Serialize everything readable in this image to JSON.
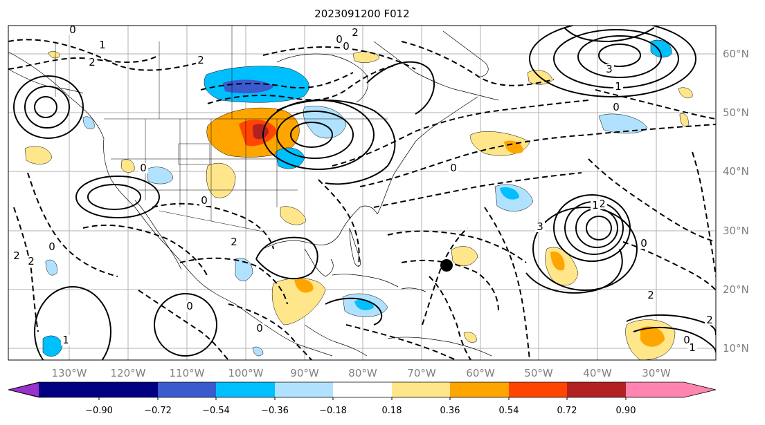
{
  "title": "2023091200 F012",
  "map": {
    "lon_labels": [
      "130°W",
      "120°W",
      "110°W",
      "100°W",
      "90°W",
      "80°W",
      "70°W",
      "60°W",
      "50°W",
      "40°W",
      "30°W"
    ],
    "lat_labels": [
      "60°N",
      "50°N",
      "40°N",
      "30°N",
      "20°N",
      "10°N"
    ],
    "contour_labels": [
      "0",
      "2",
      "1",
      "2",
      "0",
      "0",
      "2",
      "3",
      "0",
      "0",
      "2",
      "1",
      "2",
      "0",
      "2",
      "0",
      "2",
      "1",
      "0",
      "0",
      "3",
      "1",
      "0",
      "0",
      "2",
      "2",
      "0",
      "1"
    ],
    "marker": "storm-center-dot"
  },
  "colorbar": {
    "colors": [
      "#9932cc",
      "#000080",
      "#3a5bcd",
      "#00bfff",
      "#b0e2ff",
      "#ffffff",
      "#ffe68a",
      "#ffa500",
      "#ff4500",
      "#b22222",
      "#ff85b0"
    ],
    "tick_labels": [
      "−0.90",
      "−0.72",
      "−0.54",
      "−0.36",
      "−0.18",
      "0.18",
      "0.36",
      "0.54",
      "0.72",
      "0.90"
    ]
  }
}
